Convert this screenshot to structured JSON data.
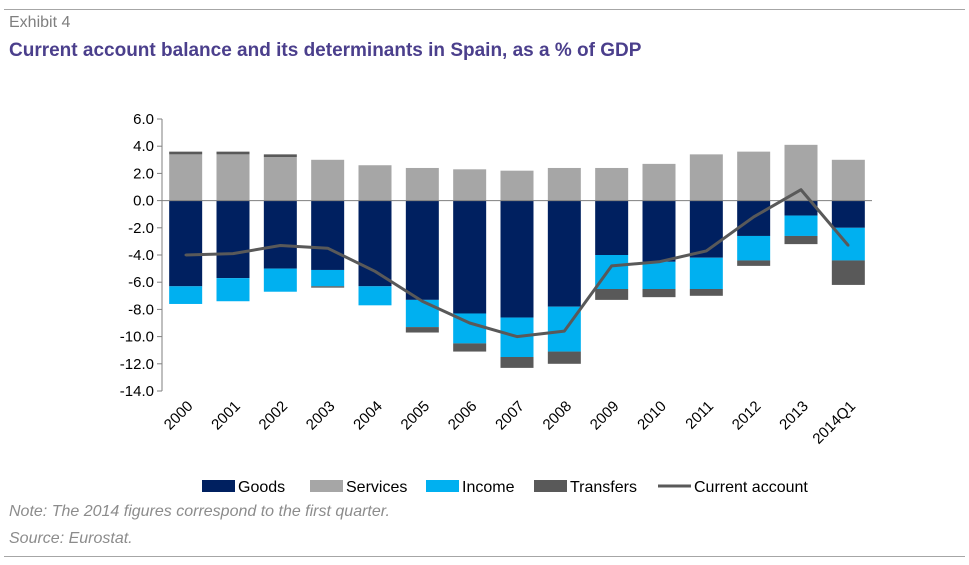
{
  "header": {
    "exhibit": "Exhibit 4",
    "title": "Current account balance and its determinants in Spain, as a % of GDP"
  },
  "footer": {
    "note": "Note: The 2014 figures correspond to the first quarter.",
    "source": "Source: Eurostat."
  },
  "colors": {
    "goods": "#002060",
    "services": "#a6a6a6",
    "income": "#00b0f0",
    "transfers": "#595959",
    "current_account": "#595959",
    "title": "#4b3f8c"
  },
  "chart_data": {
    "type": "bar",
    "stacked": true,
    "categories": [
      "2000",
      "2001",
      "2002",
      "2003",
      "2004",
      "2005",
      "2006",
      "2007",
      "2008",
      "2009",
      "2010",
      "2011",
      "2012",
      "2013",
      "2014Q1"
    ],
    "series": [
      {
        "name": "Goods",
        "type": "bar",
        "values": [
          -6.3,
          -5.7,
          -5.0,
          -5.1,
          -6.3,
          -7.3,
          -8.3,
          -8.6,
          -7.8,
          -4.0,
          -4.5,
          -4.2,
          -2.6,
          -1.1,
          -2.0
        ]
      },
      {
        "name": "Services",
        "type": "bar",
        "values": [
          3.4,
          3.4,
          3.2,
          3.0,
          2.6,
          2.4,
          2.3,
          2.2,
          2.4,
          2.4,
          2.7,
          3.4,
          3.6,
          4.1,
          3.0
        ]
      },
      {
        "name": "Income",
        "type": "bar",
        "values": [
          -1.3,
          -1.7,
          -1.7,
          -1.2,
          -1.4,
          -2.0,
          -2.2,
          -2.9,
          -3.3,
          -2.5,
          -2.0,
          -2.3,
          -1.8,
          -1.5,
          -2.4
        ]
      },
      {
        "name": "Transfers",
        "type": "bar",
        "values": [
          0.2,
          0.2,
          0.2,
          -0.1,
          0.0,
          -0.4,
          -0.6,
          -0.8,
          -0.9,
          -0.8,
          -0.6,
          -0.5,
          -0.4,
          -0.6,
          -1.8
        ]
      },
      {
        "name": "Current account",
        "type": "line",
        "values": [
          -4.0,
          -3.9,
          -3.3,
          -3.5,
          -5.2,
          -7.4,
          -9.0,
          -10.0,
          -9.6,
          -4.8,
          -4.5,
          -3.7,
          -1.2,
          0.8,
          -3.3
        ]
      }
    ],
    "ylim": [
      -14,
      6
    ],
    "yticks": [
      "6.0",
      "4.0",
      "2.0",
      "0.0",
      "-2.0",
      "-4.0",
      "-6.0",
      "-8.0",
      "-10.0",
      "-12.0",
      "-14.0"
    ],
    "ytick_values": [
      6,
      4,
      2,
      0,
      -2,
      -4,
      -6,
      -8,
      -10,
      -12,
      -14
    ],
    "xlabel": "",
    "ylabel": "",
    "grid": false,
    "legend_position": "bottom"
  }
}
